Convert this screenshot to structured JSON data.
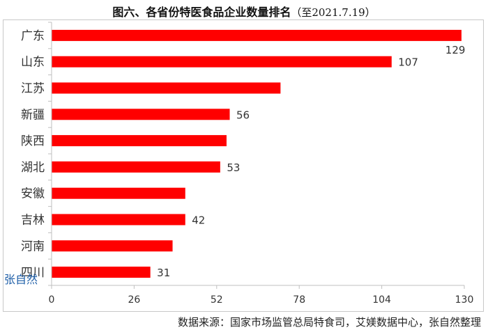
{
  "title": "图六、各省份特医食品企业数量排名",
  "title_suffix": "（至2021.7.19）",
  "source": "数据来源：国家市场监管总局特食司，艾媄数据中心，张自然整理",
  "watermark": "张自然",
  "colors": {
    "bar": "#ff0000",
    "axis": "#bfbfbf",
    "text": "#333333"
  },
  "chart_data": {
    "type": "bar",
    "orientation": "horizontal",
    "categories": [
      "广东",
      "山东",
      "江苏",
      "新疆",
      "陕西",
      "湖北",
      "安徽",
      "吉林",
      "河南",
      "四川"
    ],
    "values": [
      129,
      107,
      72,
      56,
      55,
      53,
      42,
      42,
      38,
      31
    ],
    "data_labels": [
      "129",
      "107",
      "",
      "56",
      "",
      "53",
      "",
      "42",
      "",
      "31"
    ],
    "xlim": [
      0,
      130
    ],
    "xticks": [
      0,
      26,
      52,
      78,
      104,
      130
    ],
    "grid": false,
    "legend": "none"
  }
}
